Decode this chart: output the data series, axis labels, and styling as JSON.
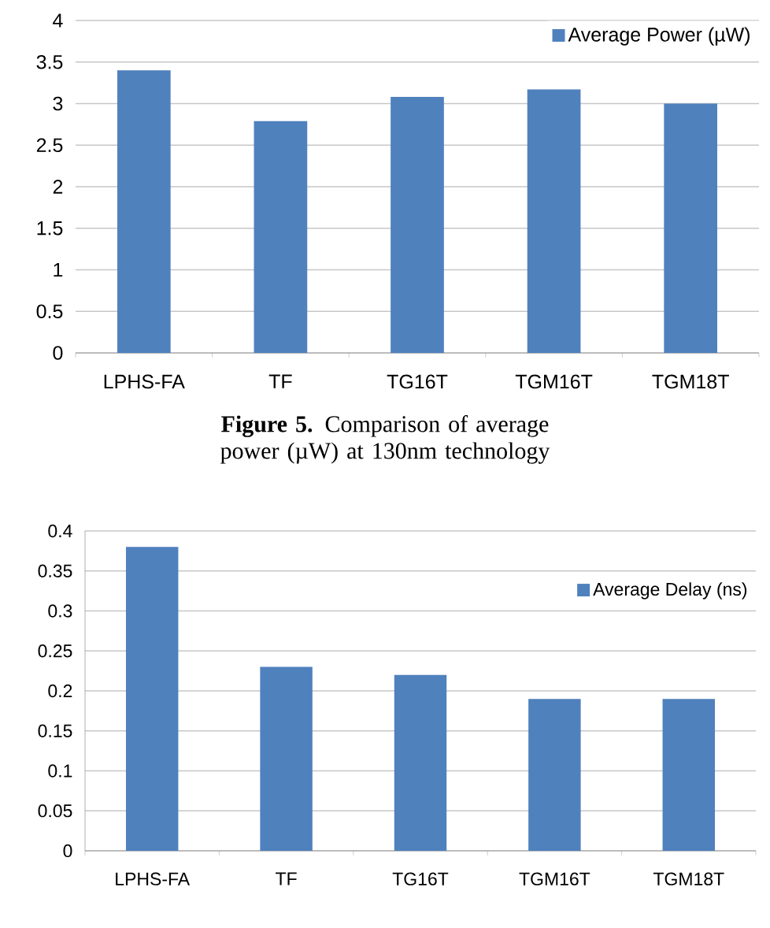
{
  "chart_data": [
    {
      "type": "bar",
      "categories": [
        "LPHS-FA",
        "TF",
        "TG16T",
        "TGM16T",
        "TGM18T"
      ],
      "series": [
        {
          "name": "Average Power (µW)",
          "color": "#4f81bd",
          "values": [
            3.4,
            2.79,
            3.08,
            3.17,
            3.0
          ]
        }
      ],
      "ylim": [
        0,
        4
      ],
      "yticks": [
        0,
        0.5,
        1,
        1.5,
        2,
        2.5,
        3,
        3.5,
        4
      ],
      "grid": "y",
      "legend": "top right",
      "annotations": [
        "**Figure 5.** Comparison of average power (µW) at 130nm technology"
      ]
    },
    {
      "type": "bar",
      "categories": [
        "LPHS-FA",
        "TF",
        "TG16T",
        "TGM16T",
        "TGM18T"
      ],
      "series": [
        {
          "name": "Average Delay (ns)",
          "color": "#4f81bd",
          "values": [
            0.38,
            0.23,
            0.22,
            0.19,
            0.19
          ]
        }
      ],
      "ylim": [
        0,
        0.4
      ],
      "yticks": [
        0,
        0.05,
        0.1,
        0.15,
        0.2,
        0.25,
        0.3,
        0.35,
        0.4
      ],
      "grid": "y",
      "legend": "top right"
    }
  ]
}
